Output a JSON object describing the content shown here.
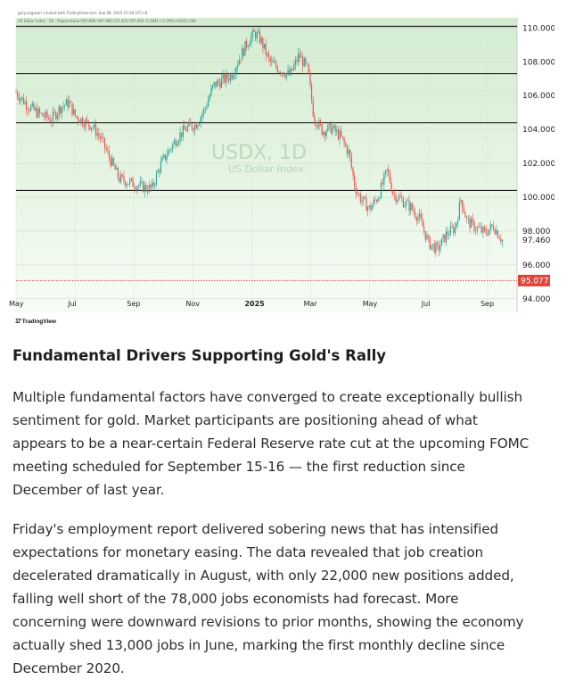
{
  "chart": {
    "caption": "gary.nagasari created with TradingView.com, Sep 08, 2025 10:18 UTC+8",
    "legend": "US Dollar Index · 1D · Pepperstone  O97.860 H97.960 L97.425 C97.460 -0.3841 (-0.39%)  R4022.566",
    "watermark_title": "USDX, 1D",
    "watermark_subtitle": "US Dollar Index",
    "brand": "TradingView",
    "current_price_label": "97.460",
    "target_price_label": "95.077",
    "colors": {
      "up": "#26a69a",
      "down": "#ef5350",
      "bg_top": "#d9efd6",
      "bg_bottom": "#f4fbf2",
      "level_line": "#1a1a1a",
      "target": "#e0443c"
    }
  },
  "chart_data": {
    "type": "candlestick",
    "title": "USDX, 1D",
    "subtitle": "US Dollar Index",
    "y_ticks": [
      "110.000",
      "108.000",
      "106.000",
      "104.000",
      "102.000",
      "100.000",
      "98.000",
      "96.000",
      "94.000"
    ],
    "ylim": [
      93.2,
      110.6
    ],
    "x_ticks": [
      {
        "label": "May",
        "month_index": 0
      },
      {
        "label": "Jul",
        "month_index": 2
      },
      {
        "label": "Sep",
        "month_index": 4
      },
      {
        "label": "Nov",
        "month_index": 6
      },
      {
        "label": "2025",
        "month_index": 8,
        "bold": true
      },
      {
        "label": "Mar",
        "month_index": 10
      },
      {
        "label": "May",
        "month_index": 12
      },
      {
        "label": "Jul",
        "month_index": 14
      },
      {
        "label": "Sep",
        "month_index": 16
      }
    ],
    "horizontal_levels": [
      110.1,
      107.3,
      104.4,
      100.4
    ],
    "target_level": 95.077,
    "last_close": 97.46,
    "price_path": [
      [
        0.0,
        106.2
      ],
      [
        0.4,
        105.4
      ],
      [
        0.8,
        104.9
      ],
      [
        1.2,
        104.6
      ],
      [
        1.5,
        105.3
      ],
      [
        1.8,
        105.6
      ],
      [
        2.0,
        104.8
      ],
      [
        2.3,
        104.5
      ],
      [
        2.6,
        104.2
      ],
      [
        2.9,
        103.4
      ],
      [
        3.2,
        102.2
      ],
      [
        3.5,
        101.1
      ],
      [
        3.8,
        100.9
      ],
      [
        4.0,
        100.8
      ],
      [
        4.3,
        100.6
      ],
      [
        4.6,
        100.5
      ],
      [
        4.9,
        101.9
      ],
      [
        5.2,
        102.8
      ],
      [
        5.5,
        103.6
      ],
      [
        5.8,
        104.1
      ],
      [
        6.1,
        104.3
      ],
      [
        6.4,
        105.2
      ],
      [
        6.7,
        106.6
      ],
      [
        7.0,
        106.9
      ],
      [
        7.3,
        107.2
      ],
      [
        7.6,
        108.3
      ],
      [
        7.9,
        109.3
      ],
      [
        8.1,
        109.7
      ],
      [
        8.3,
        109.3
      ],
      [
        8.6,
        108.0
      ],
      [
        8.9,
        107.6
      ],
      [
        9.3,
        107.2
      ],
      [
        9.6,
        108.4
      ],
      [
        9.9,
        107.5
      ],
      [
        10.1,
        104.8
      ],
      [
        10.4,
        103.9
      ],
      [
        10.7,
        104.1
      ],
      [
        11.0,
        103.6
      ],
      [
        11.3,
        102.6
      ],
      [
        11.5,
        100.6
      ],
      [
        11.7,
        99.9
      ],
      [
        12.0,
        99.3
      ],
      [
        12.3,
        100.1
      ],
      [
        12.6,
        101.6
      ],
      [
        12.8,
        100.2
      ],
      [
        13.1,
        99.8
      ],
      [
        13.4,
        99.4
      ],
      [
        13.7,
        98.7
      ],
      [
        14.0,
        97.3
      ],
      [
        14.3,
        96.9
      ],
      [
        14.6,
        97.8
      ],
      [
        14.9,
        98.2
      ],
      [
        15.1,
        99.9
      ],
      [
        15.3,
        98.6
      ],
      [
        15.6,
        98.2
      ],
      [
        15.9,
        97.9
      ],
      [
        16.2,
        98.3
      ],
      [
        16.5,
        97.46
      ]
    ]
  },
  "article": {
    "heading": "Fundamental Drivers Supporting Gold's Rally",
    "paragraph1_lines": [
      "Multiple fundamental factors have converged to create exceptionally bullish",
      "sentiment for gold. Market participants are positioning ahead of what",
      "appears to be a near-certain Federal Reserve rate cut at the upcoming FOMC",
      "meeting scheduled for September 15-16 — the first reduction since",
      "December of last year."
    ],
    "paragraph2_lines": [
      "Friday's employment report delivered sobering news that has intensified",
      "expectations for monetary easing. The data revealed that job creation",
      "decelerated dramatically in August, with only 22,000 new positions added,",
      "falling well short of the 78,000 jobs economists had forecast. More",
      "concerning were downward revisions to prior months, showing the economy",
      "actually shed 13,000 jobs in June, marking the first monthly decline since",
      "December 2020."
    ]
  }
}
